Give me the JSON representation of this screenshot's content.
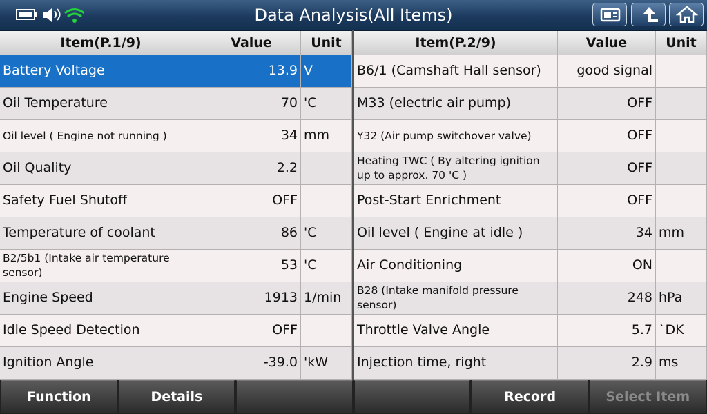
{
  "header": {
    "title": "Data Analysis(All Items)"
  },
  "tables": [
    {
      "columns": [
        "Item(P.1/9)",
        "Value",
        "Unit"
      ],
      "rows": [
        {
          "item": "Battery Voltage",
          "value": "13.9",
          "unit": "V",
          "selected": true
        },
        {
          "item": "Oil Temperature",
          "value": "70",
          "unit": "'C"
        },
        {
          "item": "Oil level ( Engine not running )",
          "value": "34",
          "unit": "mm"
        },
        {
          "item": "Oil Quality",
          "value": "2.2"
        },
        {
          "item": "Safety Fuel Shutoff",
          "value": "OFF"
        },
        {
          "item": "Temperature of coolant",
          "value": "86",
          "unit": "'C"
        },
        {
          "item": "B2/5b1 (Intake air temperature sensor)",
          "value": "53",
          "unit": "'C"
        },
        {
          "item": "Engine Speed",
          "value": "1913",
          "unit": "1/min"
        },
        {
          "item": "Idle Speed Detection",
          "value": "OFF"
        },
        {
          "item": "Ignition Angle",
          "value": "-39.0",
          "unit": "'kW"
        }
      ]
    },
    {
      "columns": [
        "Item(P.2/9)",
        "Value",
        "Unit"
      ],
      "rows": [
        {
          "item": "B6/1 (Camshaft Hall sensor)",
          "value": "good signal"
        },
        {
          "item": "M33 (electric air pump)",
          "value": "OFF"
        },
        {
          "item": "Y32 (Air pump switchover valve)",
          "value": "OFF"
        },
        {
          "item": "Heating TWC ( By altering ignition up to approx. 70 'C )",
          "value": "OFF"
        },
        {
          "item": "Post-Start Enrichment",
          "value": "OFF"
        },
        {
          "item": "Oil level ( Engine at idle )",
          "value": "34",
          "unit": "mm"
        },
        {
          "item": "Air Conditioning",
          "value": "ON"
        },
        {
          "item": "B28 (Intake manifold pressure sensor)",
          "value": "248",
          "unit": "hPa"
        },
        {
          "item": "Throttle Valve Angle",
          "value": "5.7",
          "unit": "`DK"
        },
        {
          "item": "Injection time, right",
          "value": "2.9",
          "unit": "ms"
        }
      ]
    }
  ],
  "footer": {
    "buttons": [
      "Function",
      "Details",
      "Record",
      "Select Item"
    ]
  }
}
